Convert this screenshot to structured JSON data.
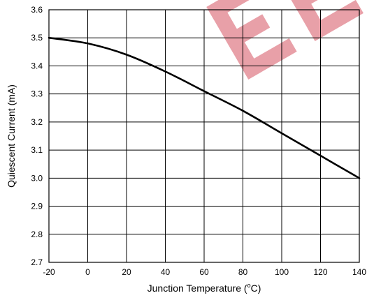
{
  "chart_data": {
    "type": "line",
    "xlabel_prefix": "Junction Temperature (",
    "xlabel_sup": "o",
    "xlabel_suffix": "C)",
    "ylabel": "Quiescent Current (mA)",
    "xlim": [
      -20,
      140
    ],
    "ylim": [
      2.7,
      3.6
    ],
    "x_ticks": [
      -20,
      0,
      20,
      40,
      60,
      80,
      100,
      120,
      140
    ],
    "x_tick_labels": [
      "-20",
      "0",
      "20",
      "40",
      "60",
      "80",
      "100",
      "120",
      "140"
    ],
    "y_ticks": [
      2.7,
      2.8,
      2.9,
      3.0,
      3.1,
      3.2,
      3.3,
      3.4,
      3.5,
      3.6
    ],
    "y_tick_labels": [
      "2.7",
      "2.8",
      "2.9",
      "3.0",
      "3.1",
      "3.2",
      "3.3",
      "3.4",
      "3.5",
      "3.6"
    ],
    "grid": true,
    "series": [
      {
        "x": [
          -20,
          0,
          20,
          40,
          60,
          80,
          100,
          120,
          140
        ],
        "y": [
          3.5,
          3.48,
          3.44,
          3.38,
          3.31,
          3.24,
          3.16,
          3.08,
          3.0
        ]
      }
    ]
  },
  "watermark": {
    "text": "EE",
    "color": "#e8a0a8"
  }
}
